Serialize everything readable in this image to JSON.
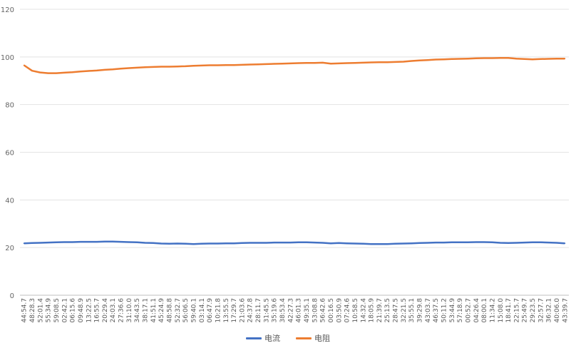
{
  "chart_data": {
    "type": "line",
    "title": "",
    "xlabel": "",
    "ylabel": "",
    "ylim": [
      0,
      120
    ],
    "yticks": [
      0,
      20,
      40,
      60,
      80,
      100,
      120
    ],
    "grid": true,
    "legend_position": "bottom",
    "x": [
      "44:54.7",
      "48:28.3",
      "52:01.4",
      "55:34.9",
      "59:08.5",
      "02:42.1",
      "06:15.6",
      "09:48.9",
      "13:22.5",
      "16:55.7",
      "20:29.4",
      "24:03.1",
      "27:36.6",
      "31:10.0",
      "34:43.5",
      "38:17.1",
      "41:51.1",
      "45:24.9",
      "48:58.8",
      "52:32.7",
      "56:06.5",
      "59:40.1",
      "03:14.1",
      "06:47.9",
      "10:21.8",
      "13:55.5",
      "17:29.7",
      "21:03.6",
      "24:37.8",
      "28:11.7",
      "31:45.5",
      "35:19.6",
      "38:53.4",
      "42:27.3",
      "46:01.3",
      "49:35.1",
      "53:08.8",
      "56:42.6",
      "00:16.5",
      "03:50.9",
      "07:24.6",
      "10:58.5",
      "14:32.4",
      "18:05.9",
      "21:39.7",
      "25:13.5",
      "28:47.5",
      "32:21.5",
      "35:55.1",
      "39:29.8",
      "43:03.7",
      "46:37.5",
      "50:11.2",
      "53:44.9",
      "57:18.9",
      "00:52.7",
      "04:26.4",
      "08:00.1",
      "11:34.2",
      "15:08.0",
      "18:41.7",
      "22:15.7",
      "25:49.7",
      "29:23.5",
      "32:57.7",
      "36:32.1",
      "40:06.0",
      "43:39.7"
    ],
    "series": [
      {
        "name": "电流",
        "color": "#4472c4",
        "values": [
          21.8,
          21.9,
          22.0,
          22.1,
          22.2,
          22.3,
          22.3,
          22.4,
          22.4,
          22.4,
          22.5,
          22.5,
          22.4,
          22.3,
          22.2,
          22.0,
          21.9,
          21.7,
          21.6,
          21.7,
          21.6,
          21.5,
          21.6,
          21.7,
          21.7,
          21.8,
          21.8,
          21.9,
          22.0,
          22.0,
          22.0,
          22.1,
          22.1,
          22.1,
          22.2,
          22.2,
          22.1,
          22.0,
          21.8,
          21.9,
          21.8,
          21.7,
          21.6,
          21.5,
          21.5,
          21.5,
          21.6,
          21.7,
          21.8,
          21.9,
          22.0,
          22.1,
          22.1,
          22.2,
          22.2,
          22.2,
          22.3,
          22.3,
          22.2,
          22.0,
          21.9,
          22.0,
          22.1,
          22.2,
          22.2,
          22.1,
          22.0,
          21.8
        ]
      },
      {
        "name": "电阻",
        "color": "#ed7d31",
        "values": [
          96.5,
          94.2,
          93.5,
          93.2,
          93.2,
          93.4,
          93.6,
          93.9,
          94.1,
          94.3,
          94.6,
          94.8,
          95.1,
          95.3,
          95.5,
          95.7,
          95.8,
          95.9,
          95.9,
          96.0,
          96.1,
          96.3,
          96.4,
          96.5,
          96.5,
          96.6,
          96.6,
          96.7,
          96.8,
          96.9,
          97.0,
          97.1,
          97.2,
          97.3,
          97.4,
          97.5,
          97.5,
          97.6,
          97.2,
          97.3,
          97.4,
          97.5,
          97.6,
          97.7,
          97.8,
          97.8,
          97.9,
          98.0,
          98.3,
          98.5,
          98.7,
          98.9,
          99.0,
          99.1,
          99.2,
          99.3,
          99.4,
          99.5,
          99.5,
          99.6,
          99.6,
          99.3,
          99.1,
          99.0,
          99.1,
          99.2,
          99.3,
          99.3
        ]
      }
    ]
  }
}
